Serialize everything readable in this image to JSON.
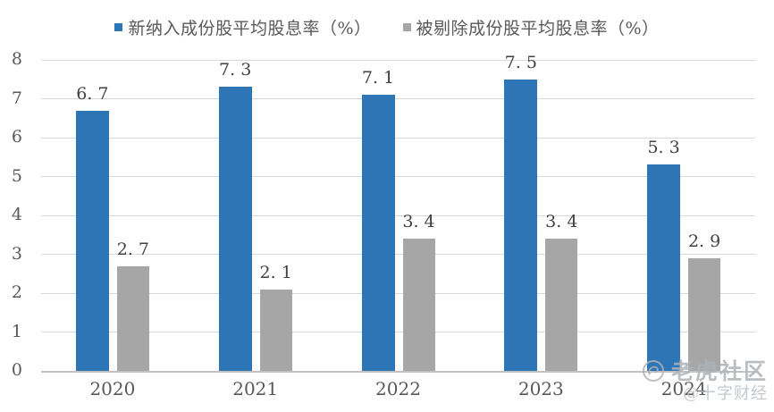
{
  "legend": {
    "items": [
      {
        "label": "新纳入成份股平均股息率（%）",
        "color": "#2E75B6"
      },
      {
        "label": "被剔除成份股平均股息率（%）",
        "color": "#A6A6A6"
      }
    ]
  },
  "chart_data": {
    "type": "bar",
    "title": "",
    "xlabel": "",
    "ylabel": "",
    "categories": [
      "2020",
      "2021",
      "2022",
      "2023",
      "2024"
    ],
    "series": [
      {
        "name": "新纳入成份股平均股息率（%）",
        "color": "#2E75B6",
        "values": [
          6.7,
          7.3,
          7.1,
          7.5,
          5.3
        ],
        "value_labels": [
          "6. 7",
          "7. 3",
          "7. 1",
          "7. 5",
          "5. 3"
        ]
      },
      {
        "name": "被剔除成份股平均股息率（%）",
        "color": "#A6A6A6",
        "values": [
          2.7,
          2.1,
          3.4,
          3.4,
          2.9
        ],
        "value_labels": [
          "2. 7",
          "2. 1",
          "3. 4",
          "3. 4",
          "2. 9"
        ]
      }
    ],
    "ylim": [
      0,
      8
    ],
    "ytick_interval": 1,
    "yticks": [
      "0",
      "1",
      "2",
      "3",
      "4",
      "5",
      "6",
      "7",
      "8"
    ],
    "grid": true,
    "legend_position": "top"
  },
  "watermark": {
    "community_name": "老虎社区",
    "author_handle": "@十字财经"
  },
  "colors": {
    "grid": "#D9D9D9",
    "axis_line": "#C2C2C2",
    "tick_text": "#595959",
    "value_label_text": "#404040",
    "legend_text": "#595959",
    "watermark": "#ADB3B9"
  }
}
